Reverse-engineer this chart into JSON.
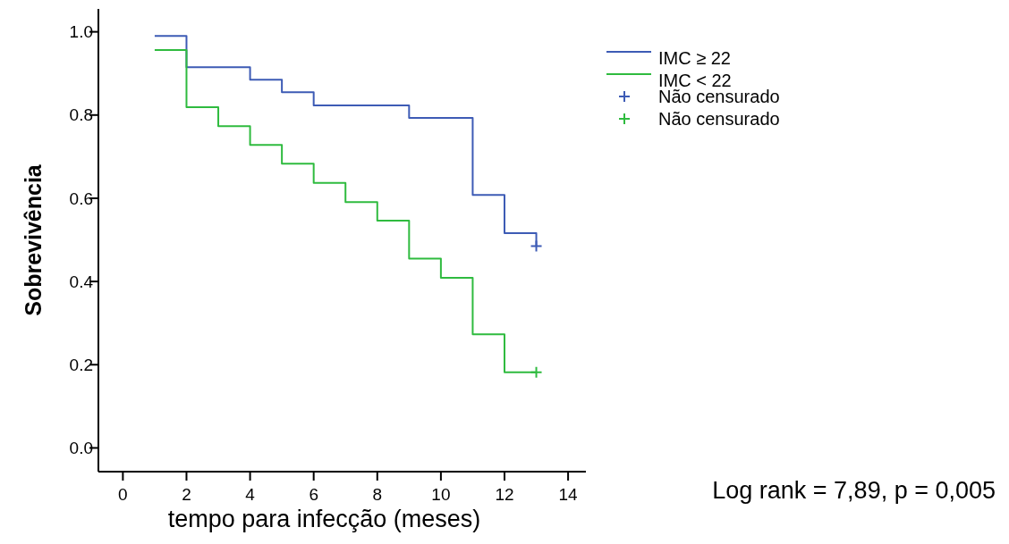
{
  "chart_data": {
    "type": "step",
    "xlabel": "tempo para infecção (meses)",
    "ylabel": "Sobrevivência",
    "xlim": [
      -0.77,
      14.56
    ],
    "ylim": [
      -0.057,
      1.055
    ],
    "xticks": [
      0,
      2,
      4,
      6,
      8,
      10,
      12,
      14
    ],
    "yticks": [
      {
        "value": 0,
        "label": "0.0"
      },
      0.2,
      0.4,
      0.6,
      0.8,
      {
        "value": 1,
        "label": "1.0"
      }
    ],
    "grid": false,
    "legend": "top right",
    "line_style": "solid",
    "annotations": [
      "Log rank = 7,89, p = 0,005"
    ],
    "series": [
      {
        "name": "IMC ≥ 22",
        "color": "#3d5bb5",
        "x": [
          1,
          2,
          4,
          5,
          6,
          9,
          11,
          12,
          13
        ],
        "values": [
          0.99,
          0.915,
          0.885,
          0.855,
          0.823,
          0.793,
          0.608,
          0.516,
          0.485
        ]
      },
      {
        "name": "IMC < 22",
        "color": "#2fbb3f",
        "x": [
          1,
          2,
          3,
          4,
          5,
          6,
          7,
          8,
          9,
          10,
          11,
          12,
          13
        ],
        "values": [
          0.956,
          0.819,
          0.773,
          0.728,
          0.683,
          0.637,
          0.591,
          0.546,
          0.455,
          0.409,
          0.273,
          0.182,
          0.182
        ]
      },
      {
        "name": "Não censurado",
        "type": "scatter",
        "marker": "cross",
        "color": "#3d5bb5",
        "x": [
          13
        ],
        "values": [
          0.485
        ]
      },
      {
        "name": "Não censurado",
        "type": "scatter",
        "marker": "cross",
        "color": "#2fbb3f",
        "x": [
          13
        ],
        "values": [
          0.182
        ]
      }
    ]
  }
}
